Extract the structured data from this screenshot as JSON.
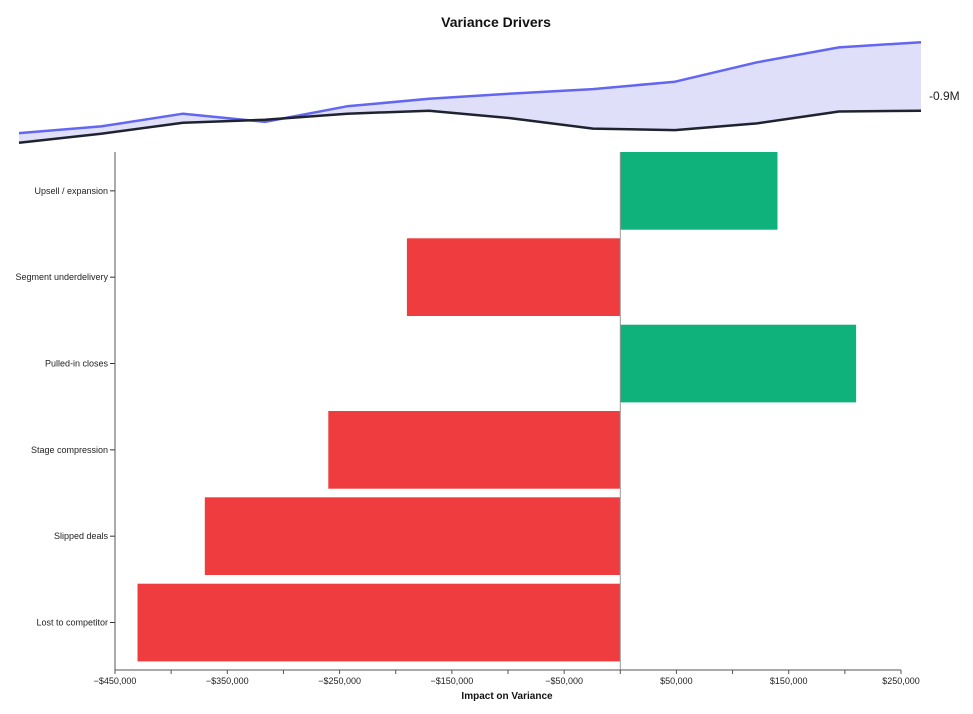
{
  "chart_data": [
    {
      "type": "line",
      "x": [
        1,
        2,
        3,
        4,
        5,
        6,
        7,
        8,
        9,
        10,
        11,
        12
      ],
      "series": [
        {
          "values": [
            -1.25,
            -1.13,
            -0.98,
            -0.94,
            -0.86,
            -0.82,
            -0.92,
            -1.06,
            -1.08,
            -0.99,
            -0.83,
            -0.82
          ]
        },
        {
          "values": [
            -1.12,
            -1.03,
            -0.86,
            -0.97,
            -0.76,
            -0.66,
            -0.59,
            -0.53,
            -0.43,
            -0.17,
            0.03,
            0.1
          ]
        }
      ],
      "end_label": "-0.9M",
      "colors": {
        "actual": "#1f2330",
        "forecast": "#6366f1",
        "fill": "#dcdcfa"
      }
    },
    {
      "type": "bar",
      "orientation": "horizontal",
      "title": "Variance Drivers",
      "xlabel": "Impact on Variance",
      "categories": [
        "Upsell / expansion",
        "Segment underdelivery",
        "Pulled-in closes",
        "Stage compression",
        "Slipped deals",
        "Lost to competitor"
      ],
      "values": [
        140000,
        -190000,
        210000,
        -260000,
        -370000,
        -430000
      ],
      "xlim": [
        -450000,
        250000
      ],
      "tick_values": [
        -450000,
        -350000,
        -250000,
        -150000,
        -50000,
        50000,
        150000,
        250000
      ],
      "tick_labels": [
        "−$450,000",
        "−$350,000",
        "−$250,000",
        "−$150,000",
        "−$50,000",
        "$50,000",
        "$150,000",
        "$250,000"
      ],
      "colors": {
        "positive": "#10b27c",
        "negative": "#ef3d3f",
        "axis": "#999999"
      }
    }
  ]
}
